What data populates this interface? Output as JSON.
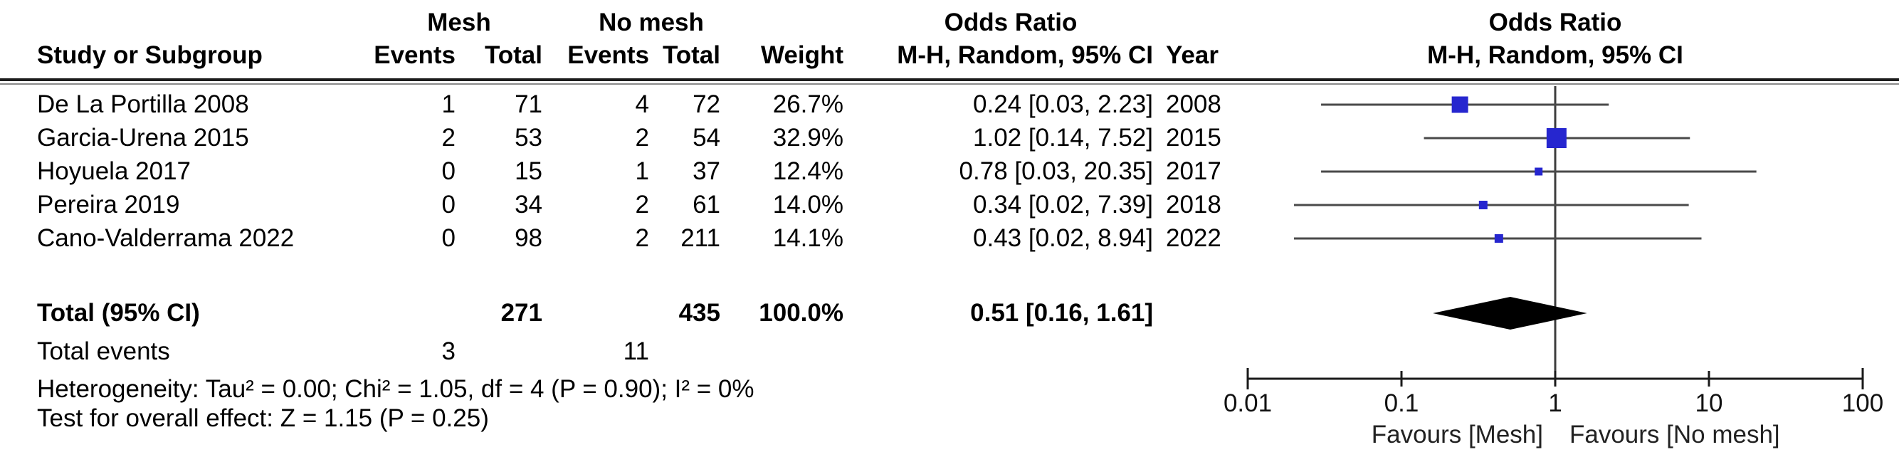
{
  "table": {
    "header": {
      "group_mesh": "Mesh",
      "group_nomesh": "No mesh",
      "group_or": "Odds Ratio",
      "study": "Study or Subgroup",
      "mesh_events": "Events",
      "mesh_total": "Total",
      "nomesh_events": "Events",
      "nomesh_total": "Total",
      "weight": "Weight",
      "mh_ci": "M-H, Random, 95% CI",
      "year": "Year"
    },
    "rows": [
      {
        "study": "De La Portilla 2008",
        "mesh_events": "1",
        "mesh_total": "71",
        "nomesh_events": "4",
        "nomesh_total": "72",
        "weight": "26.7%",
        "or_ci": "0.24 [0.03, 2.23]",
        "year": "2008"
      },
      {
        "study": "Garcia-Urena 2015",
        "mesh_events": "2",
        "mesh_total": "53",
        "nomesh_events": "2",
        "nomesh_total": "54",
        "weight": "32.9%",
        "or_ci": "1.02 [0.14, 7.52]",
        "year": "2015"
      },
      {
        "study": "Hoyuela 2017",
        "mesh_events": "0",
        "mesh_total": "15",
        "nomesh_events": "1",
        "nomesh_total": "37",
        "weight": "12.4%",
        "or_ci": "0.78 [0.03, 20.35]",
        "year": "2017"
      },
      {
        "study": "Pereira 2019",
        "mesh_events": "0",
        "mesh_total": "34",
        "nomesh_events": "2",
        "nomesh_total": "61",
        "weight": "14.0%",
        "or_ci": "0.34 [0.02, 7.39]",
        "year": "2018"
      },
      {
        "study": "Cano-Valderrama 2022",
        "mesh_events": "0",
        "mesh_total": "98",
        "nomesh_events": "2",
        "nomesh_total": "211",
        "weight": "14.1%",
        "or_ci": "0.43 [0.02, 8.94]",
        "year": "2022"
      }
    ],
    "total_row": {
      "label": "Total (95% CI)",
      "mesh_total": "271",
      "nomesh_total": "435",
      "weight": "100.0%",
      "or_ci": "0.51 [0.16, 1.61]"
    },
    "total_events": {
      "label": "Total events",
      "mesh": "3",
      "nomesh": "11"
    },
    "heterogeneity": "Heterogeneity: Tau² = 0.00; Chi² = 1.05, df = 4 (P = 0.90); I² = 0%",
    "overall_effect": "Test for overall effect: Z = 1.15 (P = 0.25)"
  },
  "plot_header": {
    "line1": "Odds Ratio",
    "line2": "M-H, Random, 95% CI"
  },
  "chart_data": {
    "type": "forest",
    "effect_measure": "Odds Ratio, M-H, Random, 95% CI",
    "x_scale": "log10",
    "xlim": [
      0.01,
      100
    ],
    "axis_ticks": [
      0.01,
      0.1,
      1,
      10,
      100
    ],
    "null_line": 1,
    "studies": [
      {
        "name": "De La Portilla 2008",
        "year": "2008",
        "or": 0.24,
        "ci_low": 0.03,
        "ci_high": 2.23,
        "weight_pct": 26.7
      },
      {
        "name": "Garcia-Urena 2015",
        "year": "2015",
        "or": 1.02,
        "ci_low": 0.14,
        "ci_high": 7.52,
        "weight_pct": 32.9
      },
      {
        "name": "Hoyuela 2017",
        "year": "2017",
        "or": 0.78,
        "ci_low": 0.03,
        "ci_high": 20.35,
        "weight_pct": 12.4
      },
      {
        "name": "Pereira 2019",
        "year": "2018",
        "or": 0.34,
        "ci_low": 0.02,
        "ci_high": 7.39,
        "weight_pct": 14.0
      },
      {
        "name": "Cano-Valderrama 2022",
        "year": "2022",
        "or": 0.43,
        "ci_low": 0.02,
        "ci_high": 8.94,
        "weight_pct": 14.1
      }
    ],
    "total": {
      "or": 0.51,
      "ci_low": 0.16,
      "ci_high": 1.61,
      "mesh_events": 3,
      "mesh_total": 271,
      "nomesh_events": 11,
      "nomesh_total": 435,
      "weight_pct": 100.0
    },
    "heterogeneity": {
      "tau2": 0.0,
      "chi2": 1.05,
      "df": 4,
      "p": 0.9,
      "i2_pct": 0
    },
    "overall_effect": {
      "z": 1.15,
      "p": 0.25
    },
    "favours_left": "Favours [Mesh]",
    "favours_right": "Favours [No mesh]",
    "colors": {
      "square": "#2626cf",
      "ci_line": "#4a4a4a",
      "diamond": "#000000",
      "axis": "#1a1a1a"
    }
  }
}
